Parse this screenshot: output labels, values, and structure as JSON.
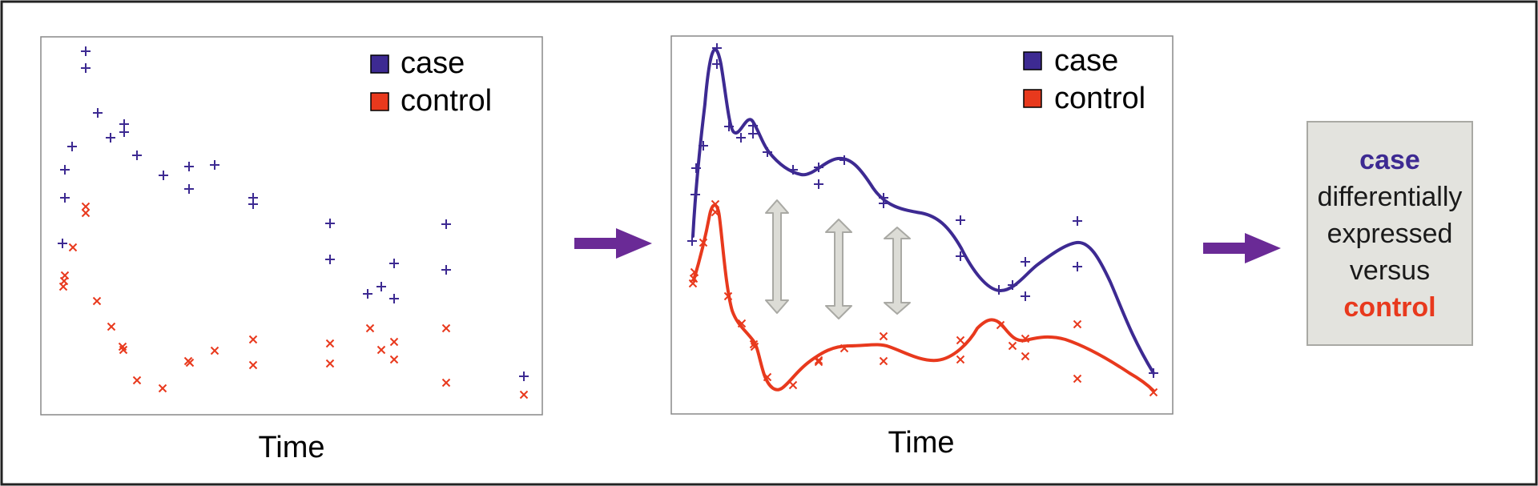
{
  "colors": {
    "case": "#3d2a92",
    "control": "#e8391d",
    "arrow": "#6a2a96",
    "double_arrow_fill": "#dcdcd6",
    "double_arrow_stroke": "#a9a9a4",
    "box_fill": "#e3e3de"
  },
  "legend": {
    "case": "case",
    "control": "control"
  },
  "panels": {
    "raw": {
      "xlabel": "Time"
    },
    "fitted": {
      "xlabel": "Time"
    }
  },
  "result": {
    "line1": "case",
    "line2": "differentially",
    "line3": "expressed",
    "line4": "versus",
    "line5": "control"
  },
  "icons": {
    "flow_arrow": "right-arrow-icon",
    "difference_marker": "double-arrow-icon"
  }
}
